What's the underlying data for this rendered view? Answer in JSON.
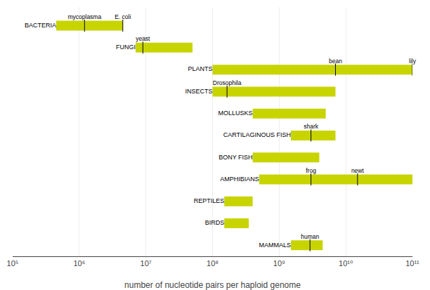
{
  "chart_data": {
    "type": "bar",
    "orientation": "horizontal",
    "log": "x",
    "xlabel": "number of nucleotide pairs per haploid genome",
    "categories": [
      "BACTERIA",
      "FUNGI",
      "PLANTS",
      "INSECTS",
      "MOLLUSKS",
      "CARTILAGINOUS FISH",
      "BONY FISH",
      "AMPHIBIANS",
      "REPTILES",
      "BIRDS",
      "MAMMALS"
    ],
    "start": [
      450000,
      7000000,
      100000000,
      100000000,
      400000000,
      1500000000,
      400000000,
      500000000,
      150000000,
      150000000,
      1500000000
    ],
    "end": [
      4500000,
      50000000,
      100000000000,
      7000000000,
      5000000000,
      7000000000,
      4000000000,
      100000000000,
      400000000,
      350000000,
      4500000000
    ],
    "markers": [
      {
        "category": "BACTERIA",
        "x": 1200000,
        "label": "mycoplasma"
      },
      {
        "category": "BACTERIA",
        "x": 4500000,
        "label": "E. coli"
      },
      {
        "category": "FUNGI",
        "x": 9000000,
        "label": "yeast"
      },
      {
        "category": "PLANTS",
        "x": 7000000000,
        "label": "bean"
      },
      {
        "category": "PLANTS",
        "x": 100000000000,
        "label": "lily"
      },
      {
        "category": "INSECTS",
        "x": 165000000,
        "label": "Drosophila"
      },
      {
        "category": "CARTILAGINOUS FISH",
        "x": 3000000000,
        "label": "shark"
      },
      {
        "category": "AMPHIBIANS",
        "x": 3000000000,
        "label": "frog"
      },
      {
        "category": "AMPHIBIANS",
        "x": 15000000000,
        "label": "newt"
      },
      {
        "category": "MAMMALS",
        "x": 2900000000,
        "label": "human"
      }
    ],
    "color": "#c8d400",
    "xlim": [
      100000,
      100000000000
    ],
    "xticks": [
      {
        "value": 100000,
        "label": "10⁵"
      },
      {
        "value": 1000000,
        "label": "10⁶"
      },
      {
        "value": 10000000,
        "label": "10⁷"
      },
      {
        "value": 100000000,
        "label": "10⁸"
      },
      {
        "value": 1000000000,
        "label": "10⁹"
      },
      {
        "value": 10000000000,
        "label": "10¹⁰"
      },
      {
        "value": 100000000000,
        "label": "10¹¹"
      }
    ],
    "grid": true,
    "tick_labels": "x"
  }
}
